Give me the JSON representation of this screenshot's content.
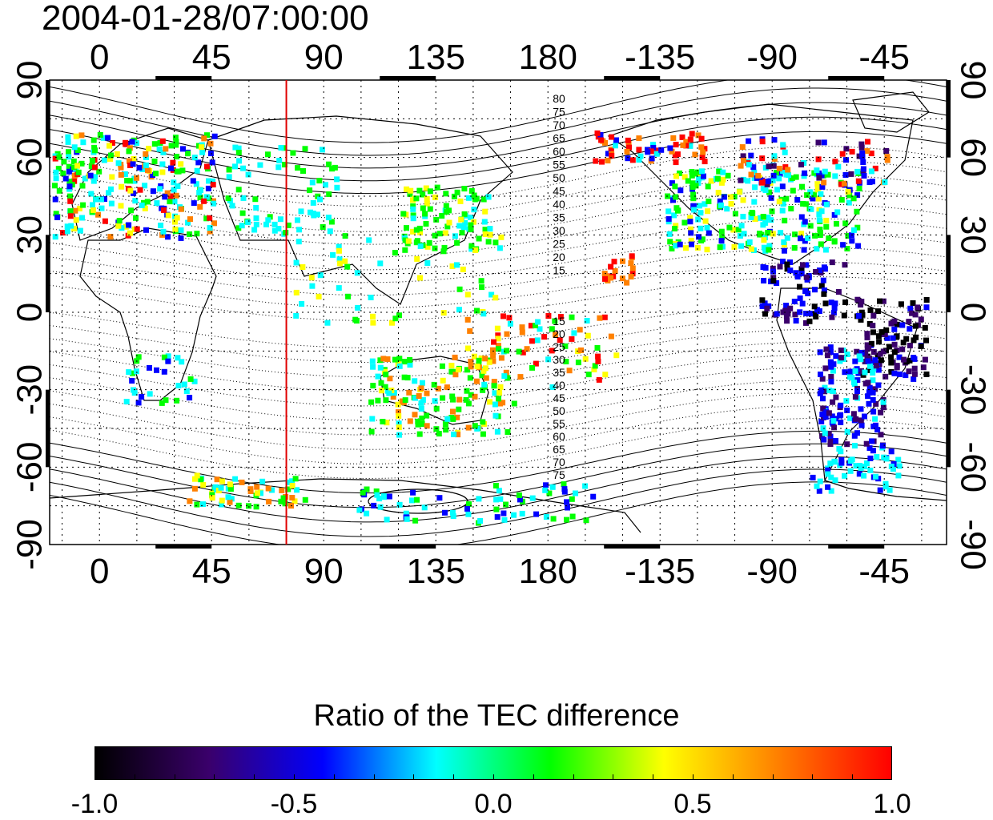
{
  "timestamp": "2004-01-28/07:00:00",
  "map": {
    "x_tick_labels": [
      "0",
      "45",
      "90",
      "135",
      "180",
      "-135",
      "-90",
      "-45"
    ],
    "y_tick_labels": [
      "90",
      "60",
      "30",
      "0",
      "-30",
      "-60",
      "-90"
    ],
    "contour_labels_north": [
      "80",
      "75",
      "70",
      "65",
      "60",
      "55",
      "50",
      "45",
      "40",
      "35",
      "30",
      "25",
      "20",
      "15"
    ],
    "contour_labels_south": [
      "15",
      "20",
      "25",
      "30",
      "35",
      "40",
      "45",
      "50",
      "55",
      "60",
      "65",
      "70",
      "75"
    ],
    "meridian_line_longitude": 75,
    "meridian_line_color": "#e00000",
    "grid": "dotted"
  },
  "colorbar": {
    "title": "Ratio of the TEC difference",
    "tick_labels": [
      "-1.0",
      "-0.5",
      "0.0",
      "0.5",
      "1.0"
    ],
    "colors": [
      "#000000",
      "#3a006b",
      "#0000ff",
      "#00ffff",
      "#00ff00",
      "#ffff00",
      "#ff8000",
      "#ff0000"
    ]
  }
}
